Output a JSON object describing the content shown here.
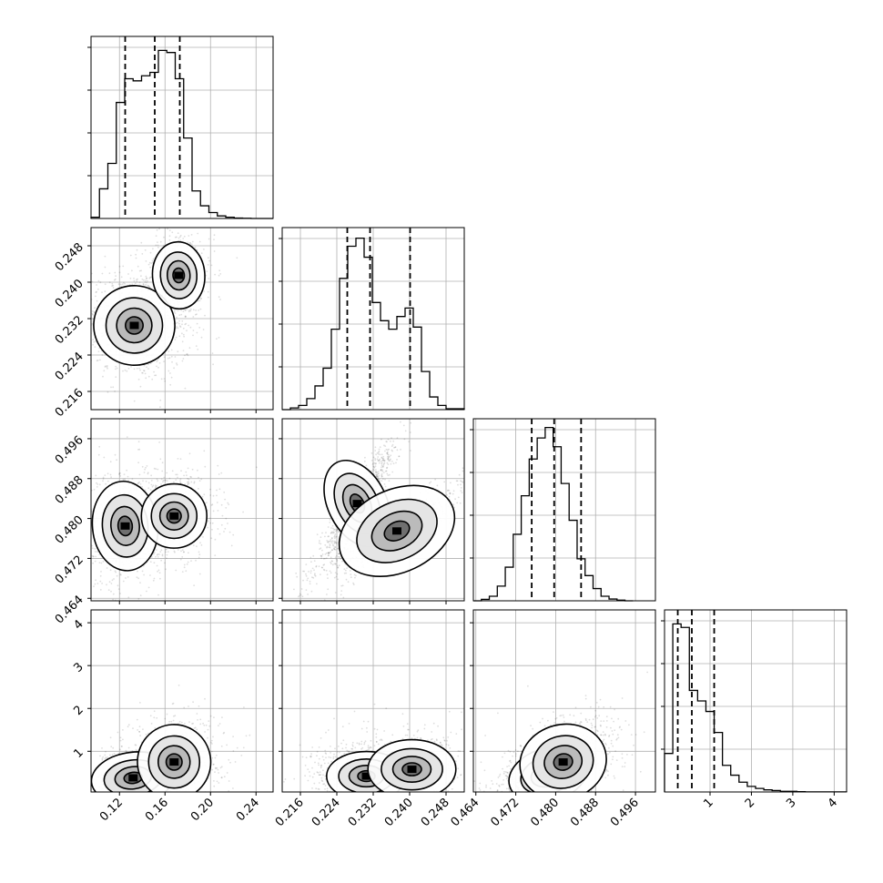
{
  "chart_data": {
    "type": "corner",
    "grid": true,
    "parameters": [
      {
        "xlim": [
          0.095,
          0.255
        ],
        "ticks": [
          0.12,
          0.16,
          0.2,
          0.24
        ],
        "tick_labels": [
          "0.12",
          "0.16",
          "0.20",
          "0.24"
        ],
        "quantiles": [
          0.125,
          0.151,
          0.173
        ],
        "hist": {
          "edges": [
            0.095,
            0.1024,
            0.1098,
            0.1172,
            0.1246,
            0.132,
            0.1394,
            0.1468,
            0.1542,
            0.1616,
            0.169,
            0.1764,
            0.1838,
            0.1912,
            0.1986,
            0.206,
            0.2134,
            0.2208,
            0.2282,
            0.2356,
            0.243,
            0.255
          ],
          "counts": [
            0.03,
            0.7,
            1.3,
            2.74,
            3.3,
            3.25,
            3.37,
            3.45,
            3.97,
            3.92,
            3.3,
            1.9,
            0.65,
            0.3,
            0.14,
            0.06,
            0.03,
            0.01,
            0.005,
            0,
            0
          ]
        },
        "hist_ymax": 4.3
      },
      {
        "xlim": [
          0.212,
          0.252
        ],
        "ticks": [
          0.216,
          0.224,
          0.232,
          0.24,
          0.248
        ],
        "tick_labels": [
          "0.216",
          "0.224",
          "0.232",
          "0.240",
          "0.248"
        ],
        "quantiles": [
          0.2263,
          0.2313,
          0.2401
        ],
        "hist": {
          "edges": [
            0.212,
            0.2138,
            0.2156,
            0.2174,
            0.2192,
            0.221,
            0.2228,
            0.2246,
            0.2264,
            0.2282,
            0.23,
            0.2318,
            0.2336,
            0.2354,
            0.2372,
            0.239,
            0.2408,
            0.2426,
            0.2444,
            0.2462,
            0.248,
            0.252
          ],
          "counts": [
            0,
            0.04,
            0.1,
            0.26,
            0.56,
            0.98,
            1.9,
            3.1,
            3.86,
            4.05,
            3.6,
            2.53,
            2.1,
            1.9,
            2.2,
            2.4,
            1.95,
            0.9,
            0.3,
            0.1,
            0.02
          ]
        },
        "hist_ymax": 4.3
      },
      {
        "xlim": [
          0.4635,
          0.5
        ],
        "ticks": [
          0.464,
          0.472,
          0.48,
          0.488,
          0.496
        ],
        "tick_labels": [
          "0.464",
          "0.472",
          "0.480",
          "0.488",
          "0.496"
        ],
        "quantiles": [
          0.4752,
          0.4797,
          0.4851
        ],
        "hist": {
          "edges": [
            0.4635,
            0.4651,
            0.4667,
            0.4683,
            0.4699,
            0.4715,
            0.4731,
            0.4747,
            0.4763,
            0.4779,
            0.4795,
            0.4811,
            0.4827,
            0.4843,
            0.4859,
            0.4875,
            0.4891,
            0.4907,
            0.4923,
            0.4939,
            0.4955
          ],
          "counts": [
            0,
            0.04,
            0.13,
            0.42,
            0.96,
            1.9,
            3.0,
            4.05,
            4.65,
            4.95,
            4.4,
            3.35,
            2.3,
            1.2,
            0.72,
            0.35,
            0.13,
            0.05,
            0.02,
            0
          ]
        },
        "hist_ymax": 5.2
      },
      {
        "xlim": [
          -0.1,
          4.3
        ],
        "ticks": [
          1,
          2,
          3,
          4
        ],
        "tick_labels": [
          "1",
          "2",
          "3",
          "4"
        ],
        "quantiles": [
          0.22,
          0.56,
          1.1
        ],
        "hist": {
          "edges": [
            -0.1,
            0.1,
            0.3,
            0.5,
            0.7,
            0.9,
            1.1,
            1.3,
            1.5,
            1.7,
            1.9,
            2.1,
            2.3,
            2.5,
            2.7,
            2.9,
            3.1,
            3.3,
            4.3
          ],
          "counts": [
            0.55,
            2.4,
            2.35,
            1.45,
            1.3,
            1.15,
            0.85,
            0.38,
            0.24,
            0.14,
            0.08,
            0.05,
            0.03,
            0.02,
            0.01,
            0.01,
            0.005,
            0.002
          ]
        },
        "hist_ymax": 2.6
      }
    ],
    "pairs": [
      {
        "row": 1,
        "col": 0,
        "ylim": [
          0.212,
          0.252
        ],
        "yticks": [
          0.216,
          0.224,
          0.232,
          0.24,
          0.248
        ],
        "ytick_labels": [
          "0.216",
          "0.224",
          "0.232",
          "0.240",
          "0.248"
        ],
        "modes": [
          {
            "x": 0.133,
            "y": 0.2305,
            "sx": 0.0155,
            "sy": 0.0038,
            "rho": -0.1,
            "w": 0.65
          },
          {
            "x": 0.172,
            "y": 0.2415,
            "sx": 0.01,
            "sy": 0.0032,
            "rho": 0.1,
            "w": 0.35
          }
        ]
      },
      {
        "row": 2,
        "col": 0,
        "ylim": [
          0.4635,
          0.5
        ],
        "yticks": [
          0.464,
          0.472,
          0.48,
          0.488,
          0.496
        ],
        "ytick_labels": [
          "0.464",
          "0.472",
          "0.480",
          "0.488",
          "0.496"
        ],
        "modes": [
          {
            "x": 0.125,
            "y": 0.4785,
            "sx": 0.0125,
            "sy": 0.0039,
            "rho": 0.15,
            "w": 0.55
          },
          {
            "x": 0.168,
            "y": 0.4805,
            "sx": 0.0125,
            "sy": 0.0028,
            "rho": 0.0,
            "w": 0.45
          }
        ]
      },
      {
        "row": 2,
        "col": 1,
        "ylim": [
          0.4635,
          0.5
        ],
        "yticks": [
          0.464,
          0.472,
          0.48,
          0.488,
          0.496
        ],
        "ytick_labels": [
          "0.464",
          "0.472",
          "0.480",
          "0.488",
          "0.496"
        ],
        "modes": [
          {
            "x": 0.2285,
            "y": 0.483,
            "sx": 0.0028,
            "sy": 0.004,
            "rho": 0.93,
            "w": 0.55
          },
          {
            "x": 0.2372,
            "y": 0.4775,
            "sx": 0.0058,
            "sy": 0.0036,
            "rho": 0.88,
            "w": 0.45
          }
        ]
      },
      {
        "row": 3,
        "col": 0,
        "ylim": [
          0.05,
          4.3
        ],
        "yticks": [
          1,
          2,
          3,
          4
        ],
        "ytick_labels": [
          "1",
          "2",
          "3",
          "4"
        ],
        "modes": [
          {
            "x": 0.132,
            "y": 0.38,
            "sx": 0.016,
            "sy": 0.26,
            "rho": 0.2,
            "w": 0.55
          },
          {
            "x": 0.168,
            "y": 0.75,
            "sx": 0.014,
            "sy": 0.38,
            "rho": 0.1,
            "w": 0.45
          }
        ]
      },
      {
        "row": 3,
        "col": 1,
        "ylim": [
          0.05,
          4.3
        ],
        "yticks": [
          1,
          2,
          3,
          4
        ],
        "ytick_labels": [
          "1",
          "2",
          "3",
          "4"
        ],
        "modes": [
          {
            "x": 0.2305,
            "y": 0.42,
            "sx": 0.0038,
            "sy": 0.25,
            "rho": 0.0,
            "w": 0.6
          },
          {
            "x": 0.2405,
            "y": 0.58,
            "sx": 0.0042,
            "sy": 0.3,
            "rho": 0.0,
            "w": 0.4
          }
        ]
      },
      {
        "row": 3,
        "col": 2,
        "ylim": [
          0.05,
          4.3
        ],
        "yticks": [
          1,
          2,
          3,
          4
        ],
        "ytick_labels": [
          "1",
          "2",
          "3",
          "4"
        ],
        "modes": [
          {
            "x": 0.4785,
            "y": 0.45,
            "sx": 0.0035,
            "sy": 0.27,
            "rho": 0.5,
            "w": 0.6
          },
          {
            "x": 0.4815,
            "y": 0.75,
            "sx": 0.0038,
            "sy": 0.38,
            "rho": 0.45,
            "w": 0.4
          }
        ]
      }
    ]
  }
}
